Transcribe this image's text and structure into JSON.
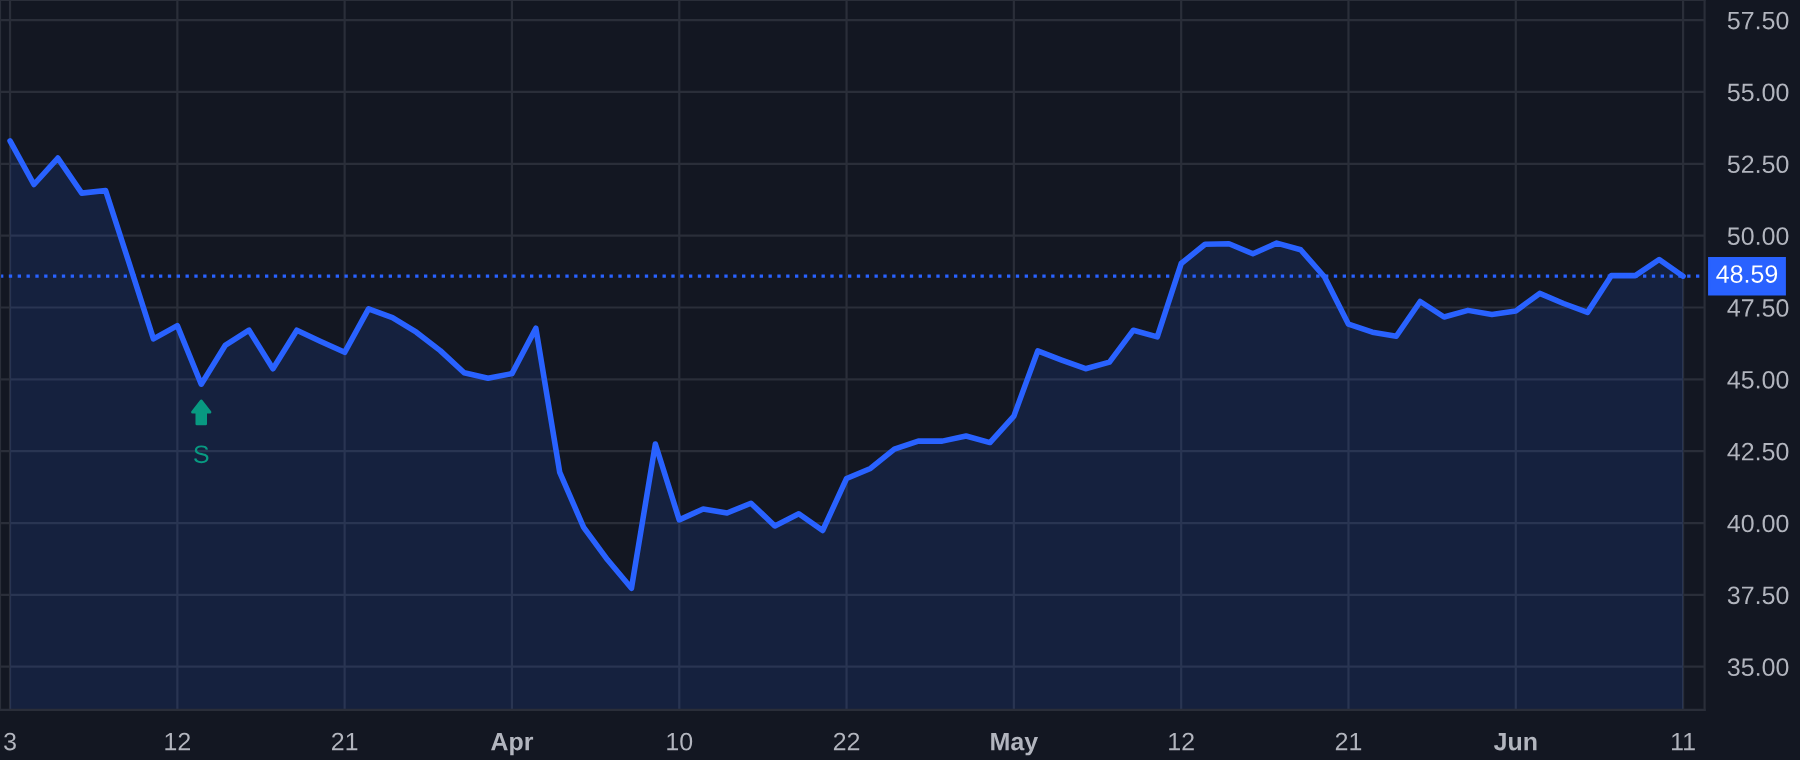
{
  "chart_data": {
    "type": "area",
    "categories": [
      "3",
      null,
      null,
      null,
      null,
      null,
      null,
      "12",
      null,
      null,
      null,
      null,
      null,
      null,
      "21",
      null,
      null,
      null,
      null,
      null,
      null,
      "Apr",
      null,
      null,
      null,
      null,
      null,
      null,
      "10",
      null,
      null,
      null,
      null,
      null,
      null,
      "22",
      null,
      null,
      null,
      null,
      null,
      null,
      "May",
      null,
      null,
      null,
      null,
      null,
      null,
      "12",
      null,
      null,
      null,
      null,
      null,
      null,
      "21",
      null,
      null,
      null,
      null,
      null,
      null,
      "Jun",
      null,
      null,
      null,
      null,
      null,
      null,
      "11"
    ],
    "series": [
      {
        "color": "#2962ff",
        "values": [
          53.3,
          51.78,
          52.7,
          51.48,
          51.57,
          49.0,
          46.41,
          46.87,
          44.83,
          46.18,
          46.71,
          45.37,
          46.71,
          46.32,
          45.94,
          47.45,
          47.15,
          46.64,
          46.0,
          45.23,
          45.04,
          45.2,
          46.78,
          41.76,
          39.85,
          38.72,
          37.73,
          42.75,
          40.11,
          40.49,
          40.35,
          40.69,
          39.9,
          40.32,
          39.74,
          41.55,
          41.9,
          42.57,
          42.85,
          42.85,
          43.03,
          42.8,
          43.72,
          45.99,
          45.67,
          45.37,
          45.6,
          46.71,
          46.48,
          49.03,
          49.7,
          49.72,
          49.37,
          49.74,
          49.51,
          48.56,
          46.92,
          46.64,
          46.5,
          47.71,
          47.17,
          47.4,
          47.26,
          47.38,
          47.99,
          47.64,
          47.33,
          48.61,
          48.61,
          49.17,
          48.59
        ]
      }
    ],
    "ylim": [
      33.5,
      58.2
    ],
    "yticks": [
      {
        "value": 35,
        "label": "35.00"
      },
      {
        "value": 37.5,
        "label": "37.50"
      },
      {
        "value": 40,
        "label": "40.00"
      },
      {
        "value": 42.5,
        "label": "42.50"
      },
      {
        "value": 45,
        "label": "45.00"
      },
      {
        "value": 47.5,
        "label": "47.50"
      },
      {
        "value": 50,
        "label": "50.00"
      },
      {
        "value": 52.5,
        "label": "52.50"
      },
      {
        "value": 55,
        "label": "55.00"
      },
      {
        "value": 57.5,
        "label": "57.50"
      }
    ],
    "grid": true,
    "ref_lines": [
      {
        "axis": "y",
        "value": 48.59,
        "label": "48.59",
        "color": "#2962ff",
        "line_style": "dotted"
      }
    ],
    "annotations": [
      {
        "text": "S",
        "y": 44.83
      }
    ]
  }
}
